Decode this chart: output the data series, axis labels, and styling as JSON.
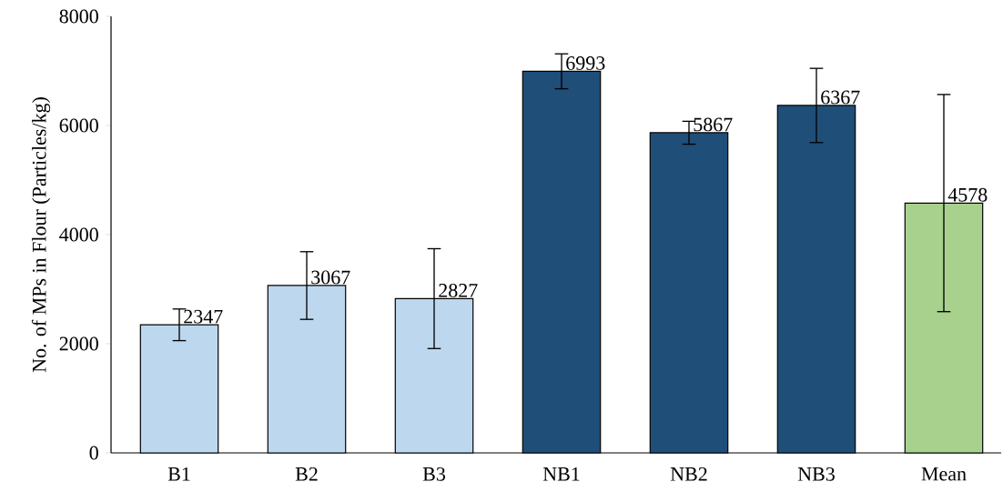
{
  "chart_data": {
    "type": "bar",
    "ylabel": "No. of MPs in Flour (Particles/kg)",
    "categories": [
      "B1",
      "B2",
      "B3",
      "NB1",
      "NB2",
      "NB3",
      "Mean"
    ],
    "values": [
      2347,
      3067,
      2827,
      6993,
      5867,
      6367,
      4578
    ],
    "errors": [
      290,
      620,
      915,
      320,
      210,
      680,
      1990
    ],
    "colors": [
      "#bdd7ee",
      "#bdd7ee",
      "#bdd7ee",
      "#1f4e79",
      "#1f4e79",
      "#1f4e79",
      "#a9d18e"
    ],
    "ylim": [
      0,
      8000
    ],
    "yticks": [
      0,
      2000,
      4000,
      6000,
      8000
    ],
    "data_labels": true
  }
}
